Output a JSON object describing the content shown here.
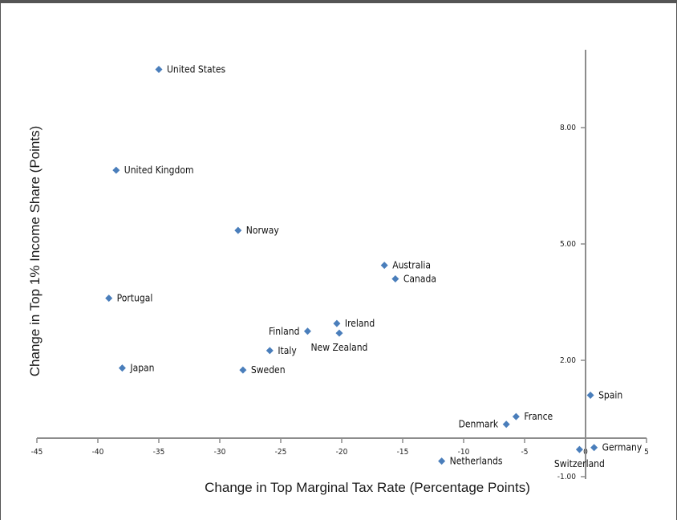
{
  "chart_data": {
    "type": "scatter",
    "xlabel": "Change in Top Marginal Tax Rate (Percentage Points)",
    "ylabel": "Change in Top 1% Income Share (Points)",
    "xlim": [
      -45,
      5
    ],
    "ylim": [
      -1.0,
      10.0
    ],
    "x_ticks": [
      -45,
      -40,
      -35,
      -30,
      -25,
      -20,
      -15,
      -10,
      -5,
      0,
      5
    ],
    "x_tick_labels": [
      "-45",
      "-40",
      "-35",
      "-30",
      "-25",
      "-20",
      "-15",
      "-10",
      "-5",
      "0",
      "5"
    ],
    "y_ticks": [
      -1.0,
      2.0,
      5.0,
      8.0
    ],
    "y_tick_labels": [
      "-1.00",
      "2.00",
      "5.00",
      "8.00"
    ],
    "grid": false,
    "marker_color": "#4a7ebb",
    "points": [
      {
        "label": "United States",
        "x": -35.0,
        "y": 9.5,
        "label_side": "right"
      },
      {
        "label": "United Kingdom",
        "x": -38.5,
        "y": 6.9,
        "label_side": "right"
      },
      {
        "label": "Norway",
        "x": -28.5,
        "y": 5.35,
        "label_side": "right"
      },
      {
        "label": "Australia",
        "x": -16.5,
        "y": 4.45,
        "label_side": "right"
      },
      {
        "label": "Canada",
        "x": -15.6,
        "y": 4.1,
        "label_side": "right"
      },
      {
        "label": "Portugal",
        "x": -39.1,
        "y": 3.6,
        "label_side": "right"
      },
      {
        "label": "Ireland",
        "x": -20.4,
        "y": 2.95,
        "label_side": "right"
      },
      {
        "label": "Finland",
        "x": -22.8,
        "y": 2.75,
        "label_side": "left"
      },
      {
        "label": "New Zealand",
        "x": -20.2,
        "y": 2.7,
        "label_side": "below"
      },
      {
        "label": "Italy",
        "x": -25.9,
        "y": 2.25,
        "label_side": "right"
      },
      {
        "label": "Japan",
        "x": -38.0,
        "y": 1.8,
        "label_side": "right"
      },
      {
        "label": "Sweden",
        "x": -28.1,
        "y": 1.75,
        "label_side": "right"
      },
      {
        "label": "Spain",
        "x": 0.4,
        "y": 1.1,
        "label_side": "right"
      },
      {
        "label": "France",
        "x": -5.7,
        "y": 0.55,
        "label_side": "right"
      },
      {
        "label": "Denmark",
        "x": -6.5,
        "y": 0.35,
        "label_side": "left"
      },
      {
        "label": "Germany",
        "x": 0.7,
        "y": -0.25,
        "label_side": "right"
      },
      {
        "label": "Switzerland",
        "x": -0.5,
        "y": -0.3,
        "label_side": "below"
      },
      {
        "label": "Netherlands",
        "x": -11.8,
        "y": -0.6,
        "label_side": "right"
      }
    ]
  }
}
